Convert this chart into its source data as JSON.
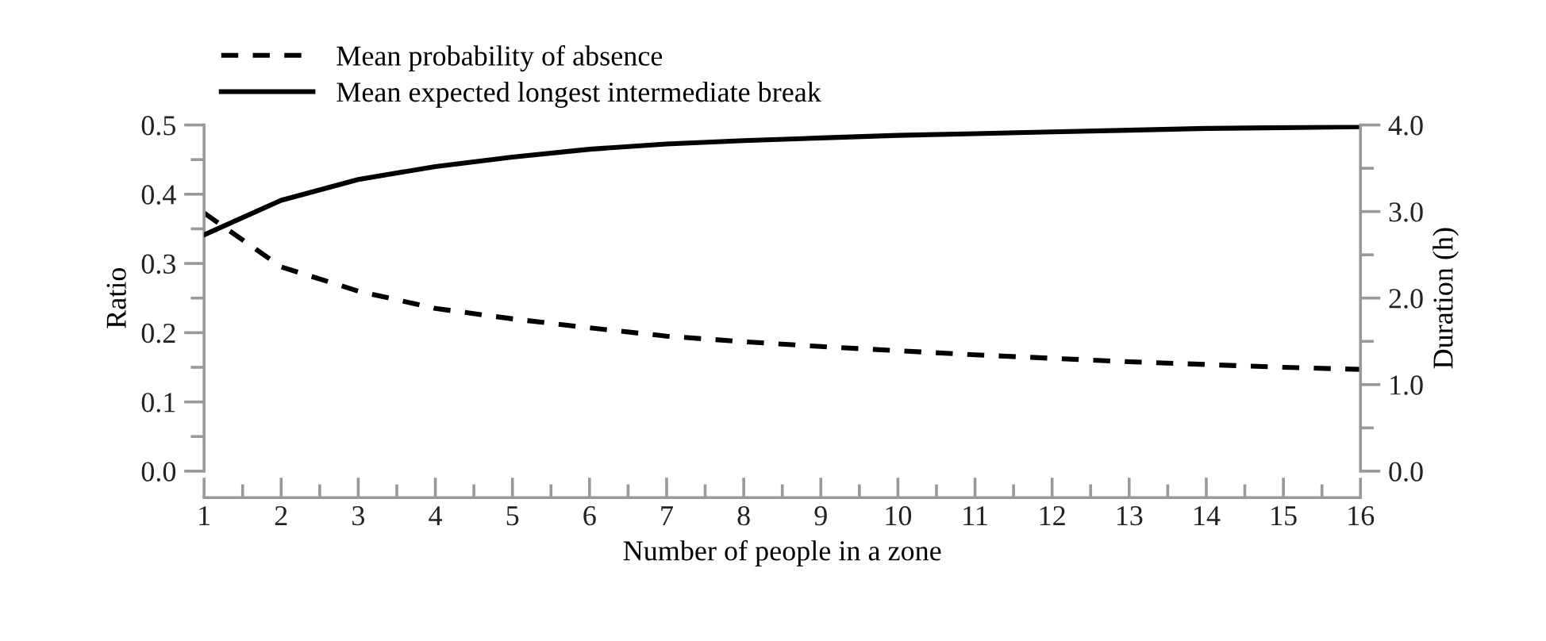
{
  "chart_data": {
    "type": "line",
    "xlabel": "Number of people in a zone",
    "ylabel": "Ratio",
    "y2label": "Duration (h)",
    "x": [
      1,
      2,
      3,
      4,
      5,
      6,
      7,
      8,
      9,
      10,
      11,
      12,
      13,
      14,
      15,
      16
    ],
    "series": [
      {
        "name": "Mean probability of absence",
        "color": "#000000",
        "line_style": "dashed",
        "values": [
          0.373,
          0.295,
          0.26,
          0.235,
          0.22,
          0.207,
          0.195,
          0.187,
          0.18,
          0.174,
          0.168,
          0.163,
          0.158,
          0.154,
          0.15,
          0.147
        ]
      },
      {
        "name": "Mean expected longest intermediate break",
        "color": "#000000",
        "line_style": "solid",
        "axis": "y2",
        "values": [
          2.73,
          3.13,
          3.37,
          3.52,
          3.63,
          3.72,
          3.78,
          3.82,
          3.85,
          3.88,
          3.9,
          3.92,
          3.94,
          3.96,
          3.97,
          3.98
        ]
      }
    ],
    "xlim": [
      1,
      16
    ],
    "xticks": [
      1,
      {
        "value": 1.5,
        "label": null
      },
      2,
      {
        "value": 2.5,
        "label": null
      },
      3,
      {
        "value": 3.5,
        "label": null
      },
      4,
      {
        "value": 4.5,
        "label": null
      },
      5,
      {
        "value": 5.5,
        "label": null
      },
      6,
      {
        "value": 6.5,
        "label": null
      },
      7,
      {
        "value": 7.5,
        "label": null
      },
      8,
      {
        "value": 8.5,
        "label": null
      },
      9,
      {
        "value": 9.5,
        "label": null
      },
      10,
      {
        "value": 10.5,
        "label": null
      },
      11,
      {
        "value": 11.5,
        "label": null
      },
      12,
      {
        "value": 12.5,
        "label": null
      },
      13,
      {
        "value": 13.5,
        "label": null
      },
      14,
      {
        "value": 14.5,
        "label": null
      },
      15,
      {
        "value": 15.5,
        "label": null
      },
      16
    ],
    "ylim": [
      0,
      0.5
    ],
    "yticks": [
      {
        "value": 0,
        "label": "0.0"
      },
      {
        "value": 0.05,
        "label": null
      },
      {
        "value": 0.1,
        "label": "0.1"
      },
      {
        "value": 0.15,
        "label": null
      },
      {
        "value": 0.2,
        "label": "0.2"
      },
      {
        "value": 0.25,
        "label": null
      },
      {
        "value": 0.3,
        "label": "0.3"
      },
      {
        "value": 0.35,
        "label": null
      },
      {
        "value": 0.4,
        "label": "0.4"
      },
      {
        "value": 0.45,
        "label": null
      },
      {
        "value": 0.5,
        "label": "0.5"
      }
    ],
    "y2lim": [
      0,
      4
    ],
    "y2ticks": [
      {
        "value": 0,
        "label": "0.0"
      },
      {
        "value": 0.5,
        "label": null
      },
      {
        "value": 1,
        "label": "1.0"
      },
      {
        "value": 1.5,
        "label": null
      },
      {
        "value": 2,
        "label": "2.0"
      },
      {
        "value": 2.5,
        "label": null
      },
      {
        "value": 3,
        "label": "3.0"
      },
      {
        "value": 3.5,
        "label": null
      },
      {
        "value": 4,
        "label": "4.0"
      }
    ],
    "grid": false,
    "legend": "top left",
    "marker": "none"
  }
}
